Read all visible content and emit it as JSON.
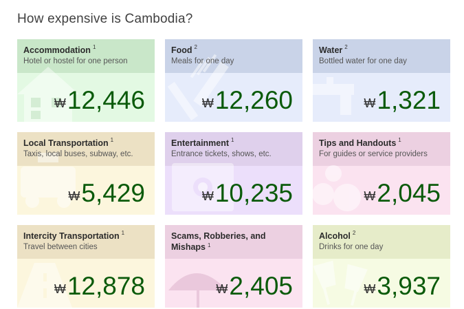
{
  "page": {
    "title": "How expensive is Cambodia?"
  },
  "currency_symbol": "₩",
  "cards": [
    {
      "title": "Accommodation",
      "sup": "1",
      "subtitle": "Hotel or hostel for one person",
      "price": "12,446",
      "icon": "house-icon",
      "head_color": "#c9e7c9",
      "body_color": "#e3f9e3"
    },
    {
      "title": "Food",
      "sup": "2",
      "subtitle": "Meals for one day",
      "price": "12,260",
      "icon": "fork-knife-icon",
      "head_color": "#c9d3e8",
      "body_color": "#e6ecfb"
    },
    {
      "title": "Water",
      "sup": "2",
      "subtitle": "Bottled water for one day",
      "price": "1,321",
      "icon": "faucet-icon",
      "head_color": "#c9d3e8",
      "body_color": "#e6ecfb"
    },
    {
      "title": "Local Transportation",
      "sup": "1",
      "subtitle": "Taxis, local buses, subway, etc.",
      "price": "5,429",
      "icon": "taxi-icon",
      "head_color": "#ece1c4",
      "body_color": "#fcf6dd"
    },
    {
      "title": "Entertainment",
      "sup": "1",
      "subtitle": "Entrance tickets, shows, etc.",
      "price": "10,235",
      "icon": "ticket-icon",
      "head_color": "#dfd0ec",
      "body_color": "#ecdffb"
    },
    {
      "title": "Tips and Handouts",
      "sup": "1",
      "subtitle": "For guides or service providers",
      "price": "2,045",
      "icon": "coins-icon",
      "head_color": "#ecd0e1",
      "body_color": "#fbe3f0"
    },
    {
      "title": "Intercity Transportation",
      "sup": "1",
      "subtitle": "Travel between cities",
      "price": "12,878",
      "icon": "road-icon",
      "head_color": "#ece1c4",
      "body_color": "#fcf6dd"
    },
    {
      "title": "Scams, Robberies, and Mishaps",
      "sup": "1",
      "subtitle": "",
      "price": "2,405",
      "icon": "umbrella-icon",
      "head_color": "#ecd0e1",
      "body_color": "#fbe3f0"
    },
    {
      "title": "Alcohol",
      "sup": "2",
      "subtitle": "Drinks for one day",
      "price": "3,937",
      "icon": "glasses-icon",
      "head_color": "#e6ecc9",
      "body_color": "#f6fbe3"
    }
  ]
}
